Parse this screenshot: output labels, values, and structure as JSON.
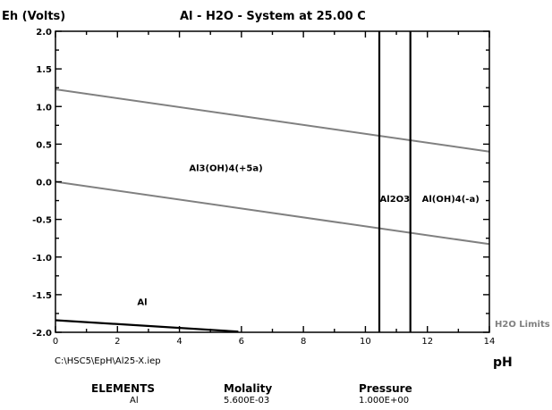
{
  "chart_data": {
    "type": "line",
    "title": "Al - H2O - System at 25.00 C",
    "ylabel": "Eh (Volts)",
    "xlabel": "pH",
    "xlim": [
      0,
      14
    ],
    "ylim": [
      -2.0,
      2.0
    ],
    "x_ticks": [
      0,
      2,
      4,
      6,
      8,
      10,
      12,
      14
    ],
    "x_tick_labels": [
      "0",
      "2",
      "4",
      "6",
      "8",
      "10",
      "12",
      "14"
    ],
    "y_ticks": [
      2.0,
      1.5,
      1.0,
      0.5,
      0.0,
      -0.5,
      -1.0,
      -1.5,
      -2.0
    ],
    "y_tick_labels": [
      "2.0",
      "1.5",
      "1.0",
      "0.5",
      "0.0",
      "-0.5",
      "-1.0",
      "-1.5",
      "-2.0"
    ],
    "grid": false,
    "series": [
      {
        "x": [
          0,
          14
        ],
        "y": [
          1.229,
          0.401
        ],
        "color": "#808080"
      },
      {
        "x": [
          0,
          14
        ],
        "y": [
          0.0,
          -0.828
        ],
        "color": "#808080"
      },
      {
        "x": [
          0,
          5.9
        ],
        "y": [
          -1.84,
          -1.99
        ],
        "color": "#000000"
      },
      {
        "x": [
          10.45,
          10.45
        ],
        "y": [
          -2.0,
          2.0
        ],
        "color": "#000000"
      },
      {
        "x": [
          11.45,
          11.45
        ],
        "y": [
          -2.0,
          2.0
        ],
        "color": "#000000"
      }
    ],
    "annotations": [
      {
        "text": "Al3(OH)4(+5a)",
        "x": 5.5,
        "y": 0.14
      },
      {
        "text": "Al2O3",
        "x": 10.95,
        "y": -0.27
      },
      {
        "text": "Al(OH)4(-a)",
        "x": 12.75,
        "y": -0.27
      },
      {
        "text": "Al",
        "x": 2.8,
        "y": -1.64
      }
    ],
    "limit_label": "H2O Limits"
  },
  "footer": {
    "file_path": "C:\\HSC5\\EpH\\Al25-X.iep",
    "elements_header": "ELEMENTS",
    "molality_header": "Molality",
    "pressure_header": "Pressure",
    "element": "Al",
    "molality": "5.600E-03",
    "pressure": "1.000E+00"
  },
  "colors": {
    "water_limit": "#808080",
    "boundary": "#000000",
    "text": "#000000"
  }
}
